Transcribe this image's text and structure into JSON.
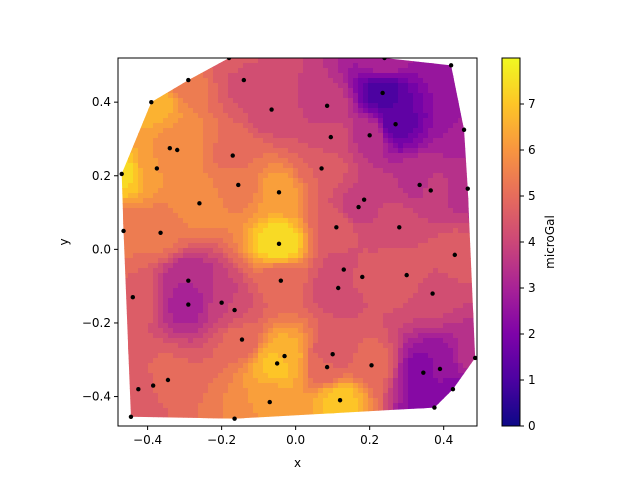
{
  "chart_data": {
    "type": "heatmap",
    "title": "",
    "xlabel": "x",
    "ylabel": "y",
    "xlim": [
      -0.48,
      0.49
    ],
    "ylim": [
      -0.48,
      0.52
    ],
    "xticks": [
      "−0.4",
      "−0.2",
      "0.0",
      "0.2",
      "0.4"
    ],
    "xtick_values": [
      -0.4,
      -0.2,
      0.0,
      0.2,
      0.4
    ],
    "yticks": [
      "−0.4",
      "−0.2",
      "0.0",
      "0.2",
      "0.4"
    ],
    "ytick_values": [
      -0.4,
      -0.2,
      0.0,
      0.2,
      0.4
    ],
    "colorbar": {
      "label": "microGal",
      "range": [
        0,
        8
      ],
      "ticks": [
        "0",
        "1",
        "2",
        "3",
        "4",
        "5",
        "6",
        "7"
      ],
      "tick_values": [
        0,
        1,
        2,
        3,
        4,
        5,
        6,
        7
      ],
      "colormap": "plasma"
    },
    "points": [
      [
        -0.47,
        0.205,
        7.3
      ],
      [
        -0.465,
        0.05,
        5.3
      ],
      [
        -0.44,
        -0.13,
        4.8
      ],
      [
        -0.445,
        -0.455,
        4.6
      ],
      [
        -0.425,
        -0.38,
        4.7
      ],
      [
        -0.385,
        -0.37,
        4.8
      ],
      [
        -0.345,
        -0.355,
        4.9
      ],
      [
        -0.39,
        0.4,
        6.8
      ],
      [
        -0.375,
        0.22,
        6.0
      ],
      [
        -0.365,
        0.045,
        5.3
      ],
      [
        -0.34,
        0.275,
        6.0
      ],
      [
        -0.32,
        0.27,
        5.8
      ],
      [
        -0.29,
        0.46,
        5.3
      ],
      [
        -0.29,
        -0.085,
        3.2
      ],
      [
        -0.29,
        -0.15,
        3.0
      ],
      [
        -0.26,
        0.125,
        5.9
      ],
      [
        -0.2,
        -0.145,
        3.6
      ],
      [
        -0.18,
        0.52,
        4.6
      ],
      [
        -0.17,
        0.255,
        5.1
      ],
      [
        -0.165,
        -0.165,
        4.4
      ],
      [
        -0.165,
        -0.46,
        5.6
      ],
      [
        -0.155,
        0.175,
        5.4
      ],
      [
        -0.145,
        -0.245,
        5.0
      ],
      [
        -0.14,
        0.46,
        4.3
      ],
      [
        -0.07,
        -0.415,
        6.2
      ],
      [
        -0.065,
        0.38,
        4.2
      ],
      [
        -0.05,
        -0.31,
        7.0
      ],
      [
        -0.045,
        0.155,
        6.2
      ],
      [
        -0.045,
        0.015,
        7.6
      ],
      [
        -0.04,
        -0.085,
        4.9
      ],
      [
        -0.03,
        -0.29,
        6.6
      ],
      [
        0.07,
        0.22,
        4.8
      ],
      [
        0.085,
        0.39,
        3.8
      ],
      [
        0.085,
        -0.32,
        4.9
      ],
      [
        0.095,
        0.305,
        4.2
      ],
      [
        0.1,
        -0.285,
        4.4
      ],
      [
        0.11,
        0.06,
        4.7
      ],
      [
        0.115,
        -0.105,
        4.1
      ],
      [
        0.12,
        -0.41,
        7.0
      ],
      [
        0.13,
        -0.055,
        4.3
      ],
      [
        0.17,
        0.115,
        3.8
      ],
      [
        0.18,
        -0.075,
        4.5
      ],
      [
        0.185,
        0.135,
        4.0
      ],
      [
        0.2,
        0.31,
        3.5
      ],
      [
        0.205,
        -0.315,
        5.0
      ],
      [
        0.235,
        0.425,
        1.0
      ],
      [
        0.24,
        0.52,
        3.2
      ],
      [
        0.27,
        0.34,
        1.4
      ],
      [
        0.28,
        0.06,
        4.3
      ],
      [
        0.3,
        -0.07,
        4.8
      ],
      [
        0.335,
        0.175,
        3.5
      ],
      [
        0.345,
        -0.335,
        2.2
      ],
      [
        0.365,
        0.16,
        3.7
      ],
      [
        0.37,
        -0.12,
        4.1
      ],
      [
        0.375,
        -0.43,
        2.0
      ],
      [
        0.39,
        -0.325,
        2.5
      ],
      [
        0.42,
        0.5,
        2.6
      ],
      [
        0.425,
        -0.38,
        2.3
      ],
      [
        0.43,
        -0.015,
        4.6
      ],
      [
        0.455,
        0.325,
        2.8
      ],
      [
        0.465,
        0.165,
        3.4
      ],
      [
        0.485,
        -0.295,
        3.5
      ]
    ]
  }
}
